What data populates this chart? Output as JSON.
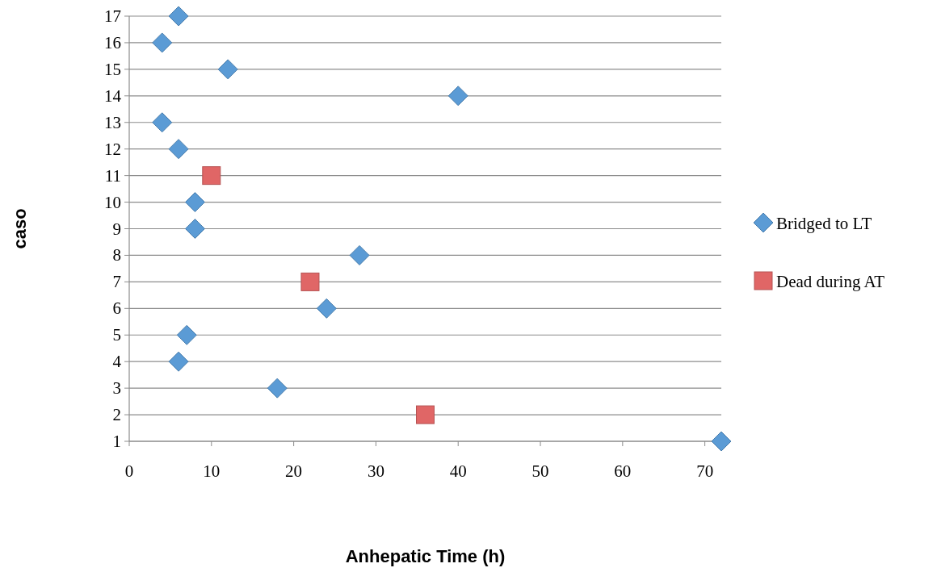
{
  "chart_data": {
    "type": "scatter",
    "xlabel": "Anhepatic Time (h)",
    "ylabel": "caso",
    "xlim": [
      0,
      72
    ],
    "xticks": [
      0,
      10,
      20,
      30,
      40,
      50,
      60,
      70
    ],
    "ylim": [
      1,
      17
    ],
    "yticks": [
      1,
      2,
      3,
      4,
      5,
      6,
      7,
      8,
      9,
      10,
      11,
      12,
      13,
      14,
      15,
      16,
      17
    ],
    "grid": "y",
    "legend": "right",
    "series": [
      {
        "name": "Bridged to LT",
        "color": "#5b9bd5",
        "marker": "diamond",
        "x": [
          72,
          18,
          6,
          7,
          24,
          28,
          8,
          8,
          6,
          4,
          40,
          12,
          4,
          6
        ],
        "values": [
          1,
          3,
          4,
          5,
          6,
          8,
          9,
          10,
          12,
          13,
          14,
          15,
          16,
          17
        ]
      },
      {
        "name": "Dead during AT",
        "color": "#e06666",
        "marker": "square",
        "x": [
          36,
          22,
          10
        ],
        "values": [
          2,
          7,
          11
        ]
      }
    ]
  }
}
